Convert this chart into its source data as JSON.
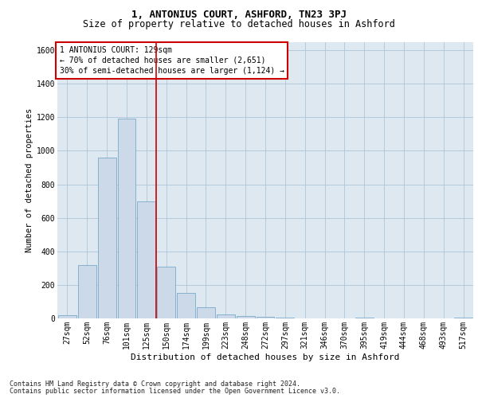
{
  "title1": "1, ANTONIUS COURT, ASHFORD, TN23 3PJ",
  "title2": "Size of property relative to detached houses in Ashford",
  "xlabel": "Distribution of detached houses by size in Ashford",
  "ylabel": "Number of detached properties",
  "footer1": "Contains HM Land Registry data © Crown copyright and database right 2024.",
  "footer2": "Contains public sector information licensed under the Open Government Licence v3.0.",
  "annotation_line1": "1 ANTONIUS COURT: 129sqm",
  "annotation_line2": "← 70% of detached houses are smaller (2,651)",
  "annotation_line3": "30% of semi-detached houses are larger (1,124) →",
  "bar_labels": [
    "27sqm",
    "52sqm",
    "76sqm",
    "101sqm",
    "125sqm",
    "150sqm",
    "174sqm",
    "199sqm",
    "223sqm",
    "248sqm",
    "272sqm",
    "297sqm",
    "321sqm",
    "346sqm",
    "370sqm",
    "395sqm",
    "419sqm",
    "444sqm",
    "468sqm",
    "493sqm",
    "517sqm"
  ],
  "bar_values": [
    20,
    320,
    960,
    1190,
    700,
    310,
    150,
    65,
    25,
    15,
    10,
    5,
    0,
    0,
    0,
    5,
    0,
    0,
    0,
    0,
    5
  ],
  "bar_color": "#ccd9e8",
  "bar_edge_color": "#7aaac8",
  "vline_color": "#cc0000",
  "vline_x": 4.5,
  "ylim": [
    0,
    1650
  ],
  "yticks": [
    0,
    200,
    400,
    600,
    800,
    1000,
    1200,
    1400,
    1600
  ],
  "grid_color": "#aec6d8",
  "bg_color": "#dde8f0",
  "annotation_box_color": "#cc0000",
  "title1_fontsize": 9,
  "title2_fontsize": 8.5,
  "xlabel_fontsize": 8,
  "ylabel_fontsize": 7.5,
  "tick_fontsize": 7,
  "footer_fontsize": 6,
  "annot_fontsize": 7
}
